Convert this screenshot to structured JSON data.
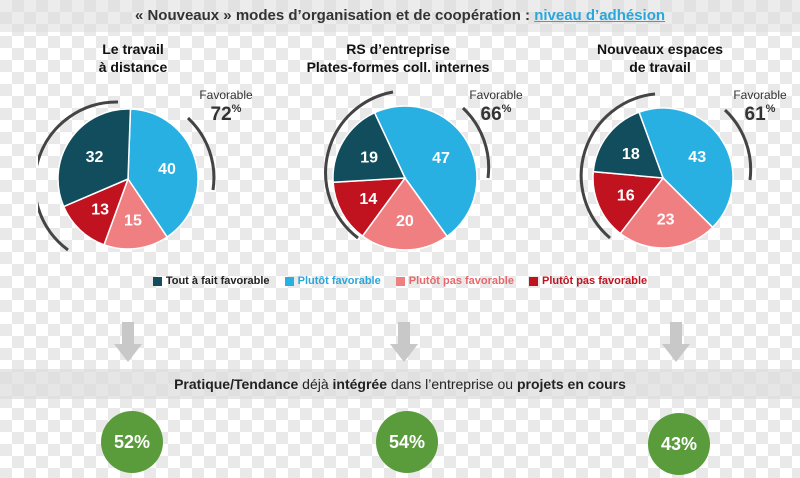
{
  "header": {
    "title_prefix": "« Nouveaux » modes d’organisation et de coopération :",
    "title_accent": "niveau d’adhésion"
  },
  "favorable_label": "Favorable",
  "colors": {
    "Tout à fait favorable": "#114d5c",
    "Plutôt favorable": "#29b0e3",
    "Plutôt pas favorable light": "#f07f82",
    "Plutôt pas favorable dark": "#c1121f",
    "green": "#5a9c3c"
  },
  "chart_data": [
    {
      "type": "pie",
      "title_lines": [
        "Le travail",
        "à distance"
      ],
      "favorable_pct": "72",
      "pct_sign": "%",
      "categories": [
        "Tout à fait favorable",
        "Plutôt favorable",
        "Plutôt pas favorable",
        "Plutôt pas favorable"
      ],
      "values": [
        32,
        40,
        15,
        13
      ]
    },
    {
      "type": "pie",
      "title_lines": [
        "RS d’entreprise",
        "Plates-formes coll. internes"
      ],
      "favorable_pct": "66",
      "pct_sign": "%",
      "categories": [
        "Tout à fait favorable",
        "Plutôt favorable",
        "Plutôt pas favorable",
        "Plutôt pas favorable"
      ],
      "values": [
        19,
        47,
        20,
        14
      ]
    },
    {
      "type": "pie",
      "title_lines": [
        "Nouveaux espaces",
        "de travail"
      ],
      "favorable_pct": "61",
      "pct_sign": "%",
      "categories": [
        "Tout à fait favorable",
        "Plutôt favorable",
        "Plutôt pas favorable",
        "Plutôt pas favorable"
      ],
      "values": [
        18,
        43,
        23,
        16
      ]
    }
  ],
  "legend": [
    {
      "label": "Tout à fait favorable",
      "color": "#114d5c",
      "text_color": "#222222"
    },
    {
      "label": "Plutôt favorable",
      "color": "#29b0e3",
      "text_color": "#29a7dc"
    },
    {
      "label": "Plutôt pas favorable",
      "color": "#f07f82",
      "text_color": "#e8676b"
    },
    {
      "label": "Plutôt pas favorable",
      "color": "#c1121f",
      "text_color": "#c1121f"
    }
  ],
  "practice": {
    "p1": "Pratique/Tendance",
    "p2": " déjà ",
    "p3": "intégrée",
    "p4": " dans l’entreprise ou ",
    "p5": "projets en cours"
  },
  "adoption": [
    "52%",
    "54%",
    "43%"
  ]
}
